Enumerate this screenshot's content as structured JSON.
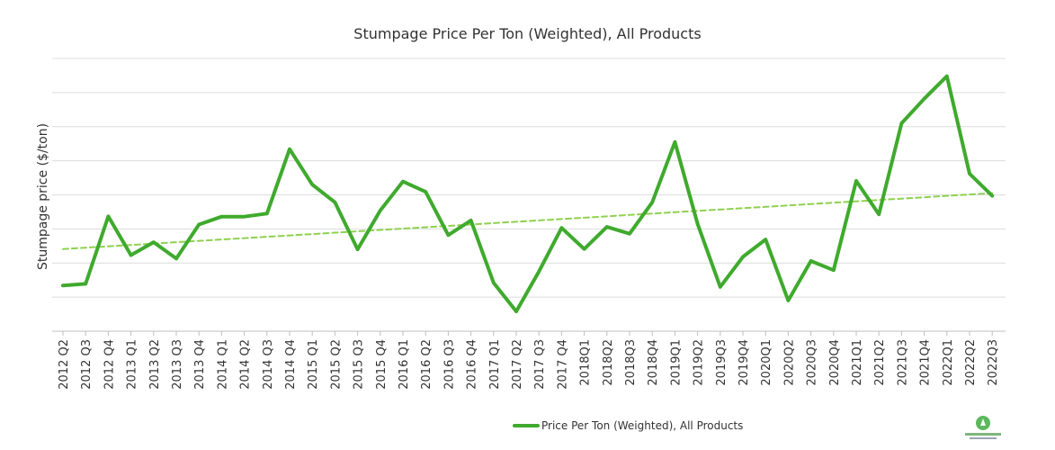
{
  "chart_data": {
    "type": "line",
    "title": "Stumpage Price Per Ton (Weighted), All Products",
    "xlabel": "",
    "ylabel": "Stumpage price ($/ton)",
    "categories": [
      "2012 Q2",
      "2012 Q3",
      "2012 Q4",
      "2013 Q1",
      "2013 Q2",
      "2013 Q3",
      "2013 Q4",
      "2014 Q1",
      "2014 Q2",
      "2014 Q3",
      "2014 Q4",
      "2015 Q1",
      "2015 Q2",
      "2015 Q3",
      "2015 Q4",
      "2016 Q1",
      "2016 Q2",
      "2016 Q3",
      "2016 Q4",
      "2017 Q1",
      "2017 Q2",
      "2017 Q3",
      "2017 Q4",
      "2018Q1",
      "2018Q2",
      "2018Q3",
      "2018Q4",
      "2019Q1",
      "2019Q2",
      "2019Q3",
      "2019Q4",
      "2020Q1",
      "2020Q2",
      "2020Q3",
      "2020Q4",
      "2021Q1",
      "2021Q2",
      "2021Q3",
      "2021Q4",
      "2022Q1",
      "2022Q2",
      "2022Q3"
    ],
    "ylim": [
      0,
      8
    ],
    "grid": true,
    "y_tick_labels_shown": false,
    "series": [
      {
        "name": "Price Per Ton (Weighted), All Products",
        "color": "#3faa2d",
        "style": "solid",
        "values": [
          1.34,
          1.39,
          3.37,
          2.23,
          2.61,
          2.13,
          3.13,
          3.36,
          3.36,
          3.45,
          5.34,
          4.3,
          3.78,
          2.4,
          3.54,
          4.39,
          4.09,
          2.82,
          3.25,
          1.42,
          0.58,
          1.75,
          3.03,
          2.41,
          3.06,
          2.86,
          3.78,
          5.55,
          3.15,
          1.3,
          2.18,
          2.69,
          0.9,
          2.06,
          1.79,
          4.41,
          3.43,
          6.1,
          6.82,
          7.48,
          4.62,
          3.97
        ]
      },
      {
        "name": "",
        "color": "#8fd14f",
        "style": "dashed",
        "trendline": true,
        "values": [
          2.41,
          2.45,
          2.49,
          2.53,
          2.57,
          2.61,
          2.65,
          2.69,
          2.73,
          2.77,
          2.81,
          2.85,
          2.89,
          2.93,
          2.97,
          3.01,
          3.05,
          3.09,
          3.13,
          3.17,
          3.21,
          3.25,
          3.29,
          3.33,
          3.37,
          3.41,
          3.45,
          3.49,
          3.53,
          3.57,
          3.61,
          3.65,
          3.69,
          3.73,
          3.77,
          3.81,
          3.85,
          3.89,
          3.93,
          3.97,
          4.01,
          4.05
        ]
      }
    ],
    "legend": {
      "placement": "bottom-center",
      "entries": [
        "Price Per Ton (Weighted), All Products"
      ]
    }
  },
  "branding": {
    "logo": "forest2market-logo",
    "logo_text": "FOREST2MARKET"
  }
}
